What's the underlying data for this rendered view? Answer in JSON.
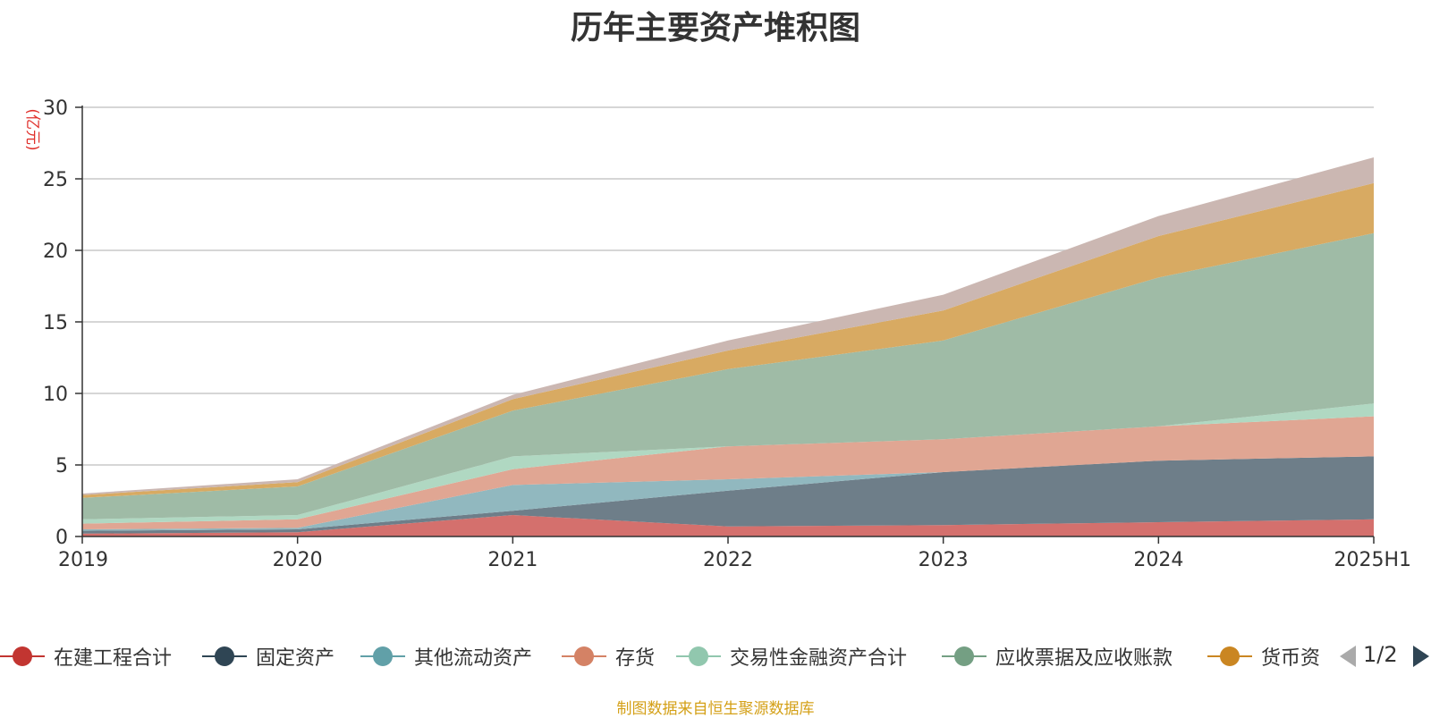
{
  "chart_data": {
    "type": "area",
    "title": "历年主要资产堆积图",
    "ylabel": "(亿元)",
    "xlabel": "",
    "ylim": [
      0,
      30
    ],
    "yticks": [
      0,
      5,
      10,
      15,
      20,
      25,
      30
    ],
    "categories": [
      "2019",
      "2020",
      "2021",
      "2022",
      "2023",
      "2024",
      "2025H1"
    ],
    "stacked": true,
    "grid": true,
    "legend_position": "bottom",
    "series": [
      {
        "name": "在建工程合计",
        "color": "#c23531",
        "fill": "#d4706d",
        "values": [
          0.2,
          0.3,
          1.5,
          0.7,
          0.8,
          1.0,
          1.2
        ]
      },
      {
        "name": "固定资产",
        "color": "#2f4554",
        "fill": "#6e7e89",
        "values": [
          0.2,
          0.2,
          0.3,
          2.5,
          3.7,
          4.3,
          4.4
        ]
      },
      {
        "name": "其他流动资产",
        "color": "#61a0a8",
        "fill": "#91b8bf",
        "values": [
          0.1,
          0.1,
          1.8,
          0.8,
          0.0,
          0.0,
          0.0
        ]
      },
      {
        "name": "存货",
        "color": "#d48265",
        "fill": "#e0a693",
        "values": [
          0.4,
          0.6,
          1.1,
          2.3,
          2.3,
          2.4,
          2.8
        ]
      },
      {
        "name": "交易性金融资产合计",
        "color": "#91c7ae",
        "fill": "#b0d8c2",
        "values": [
          0.3,
          0.3,
          0.9,
          0.0,
          0.0,
          0.0,
          0.9
        ]
      },
      {
        "name": "应收票据及应收账款",
        "color": "#749f83",
        "fill": "#9fbba6",
        "values": [
          1.5,
          2.0,
          3.2,
          5.4,
          6.9,
          10.4,
          11.9
        ]
      },
      {
        "name": "货币资金",
        "color": "#ca8622",
        "fill": "#d8aa62",
        "values": [
          0.2,
          0.3,
          0.8,
          1.3,
          2.1,
          2.9,
          3.5
        ]
      },
      {
        "name": "",
        "color": "#bda29a",
        "fill": "#cbb7b2",
        "values": [
          0.1,
          0.2,
          0.3,
          0.7,
          1.1,
          1.4,
          1.8
        ]
      }
    ]
  },
  "legend": {
    "items": [
      {
        "label": "在建工程合计",
        "color": "#c23531"
      },
      {
        "label": "固定资产",
        "color": "#2f4554"
      },
      {
        "label": "其他流动资产",
        "color": "#61a0a8"
      },
      {
        "label": "存货",
        "color": "#d48265"
      },
      {
        "label": "交易性金融资产合计",
        "color": "#91c7ae"
      },
      {
        "label": "应收票据及应收账款",
        "color": "#749f83"
      },
      {
        "label": "货币资",
        "color": "#ca8622"
      }
    ],
    "page_indicator": "1/2"
  },
  "source_note": "制图数据来自恒生聚源数据库"
}
